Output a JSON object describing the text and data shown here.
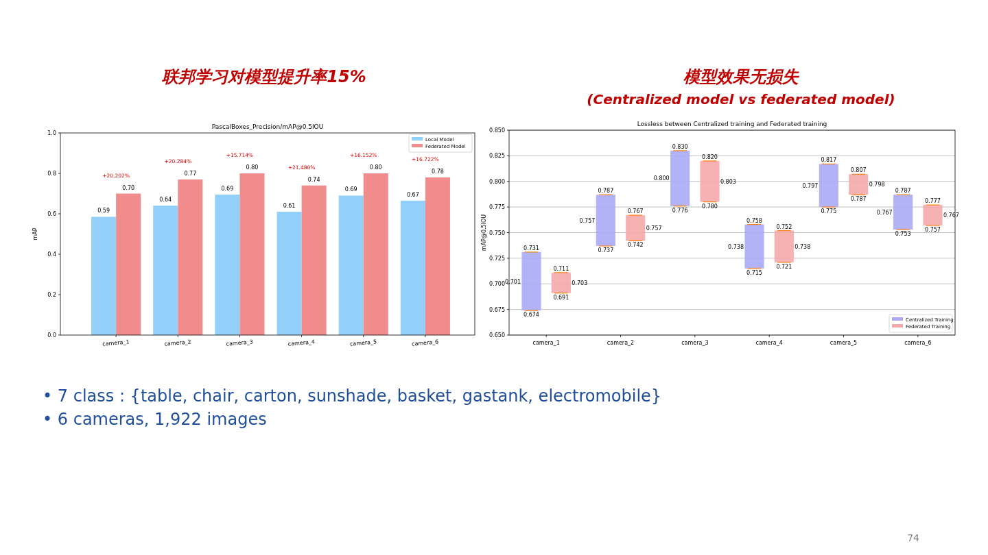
{
  "chart_data": [
    {
      "type": "bar",
      "title": "联邦学习对模型提升率15%",
      "subtitle": "PascalBoxes_Precision/mAP@0.5IOU",
      "ylabel": "mAP",
      "categories": [
        "camera_1",
        "camera_2",
        "camera_3",
        "camera_4",
        "camera_5",
        "camera_6"
      ],
      "series": [
        {
          "name": "Local Model",
          "color": "#92d0f9",
          "values": [
            0.585,
            0.64,
            0.695,
            0.61,
            0.69,
            0.665
          ],
          "value_labels": [
            "0.59",
            "0.64",
            "0.69",
            "0.61",
            "0.69",
            "0.67"
          ]
        },
        {
          "name": "Federated Model",
          "color": "#f08c8c",
          "values": [
            0.7,
            0.77,
            0.8,
            0.74,
            0.8,
            0.78
          ],
          "value_labels": [
            "0.70",
            "0.77",
            "0.80",
            "0.74",
            "0.80",
            "0.78"
          ]
        }
      ],
      "annotations": [
        "+20.202%",
        "+20.284%",
        "+15.714%",
        "+21.480%",
        "+16.152%",
        "+16.722%"
      ],
      "ylim": [
        0,
        1
      ],
      "yticks": [
        {
          "value": 0,
          "label": "0.0"
        },
        {
          "value": 0.2,
          "label": "0.2"
        },
        {
          "value": 0.4,
          "label": "0.4"
        },
        {
          "value": 0.6,
          "label": "0.6"
        },
        {
          "value": 0.8,
          "label": "0.8"
        },
        {
          "value": 1,
          "label": "1.0"
        }
      ],
      "legend": "top right"
    },
    {
      "type": "bar",
      "title": "模型效果无损失",
      "subtitle": "(Centralized model vs federated model)",
      "ylabel": "mAP@0.5IOU",
      "categories": [
        "camera_1",
        "camera_2",
        "camera_3",
        "camera_4",
        "camera_5",
        "camera_6"
      ],
      "series": [
        {
          "name": "Centralized Training",
          "color": "#aaaaf5",
          "base": [
            0.674,
            0.737,
            0.776,
            0.715,
            0.775,
            0.753
          ],
          "values": [
            0.057,
            0.05,
            0.054,
            0.043,
            0.042,
            0.034
          ]
        },
        {
          "name": "Federated Training",
          "color": "#f5aaaa",
          "base": [
            0.691,
            0.742,
            0.78,
            0.721,
            0.787,
            0.757
          ],
          "values": [
            0.02,
            0.025,
            0.04,
            0.031,
            0.02,
            0.02
          ]
        }
      ],
      "annotations": [
        "Lossless between Centralized training and Federated training",
        "0.731",
        "0.701",
        "0.674",
        "0.711",
        "0.703",
        "0.691",
        "0.787",
        "0.757",
        "0.737",
        "0.767",
        "0.757",
        "0.742",
        "0.830",
        "0.800",
        "0.776",
        "0.820",
        "0.803",
        "0.780",
        "0.758",
        "0.738",
        "0.715",
        "0.752",
        "0.738",
        "0.721",
        "0.817",
        "0.797",
        "0.775",
        "0.807",
        "0.798",
        "0.787",
        "0.787",
        "0.767",
        "0.753",
        "0.777",
        "0.767",
        "0.757"
      ],
      "ylim": [
        0.65,
        0.85
      ],
      "yticks": [
        {
          "value": 0.65,
          "label": "0.650"
        },
        {
          "value": 0.675,
          "label": "0.675"
        },
        {
          "value": 0.7,
          "label": "0.700"
        },
        {
          "value": 0.725,
          "label": "0.725"
        },
        {
          "value": 0.75,
          "label": "0.750"
        },
        {
          "value": 0.775,
          "label": "0.775"
        },
        {
          "value": 0.8,
          "label": "0.800"
        },
        {
          "value": 0.825,
          "label": "0.825"
        },
        {
          "value": 0.85,
          "label": "0.850"
        }
      ],
      "grid": "y",
      "legend": "bottom right"
    },
    {
      "type": "other",
      "annotations": [
        "•  7 class : {table, chair, carton, sunshade, basket, gastank, electromobile}",
        "•  6 cameras, 1,922 images",
        "74"
      ]
    }
  ]
}
